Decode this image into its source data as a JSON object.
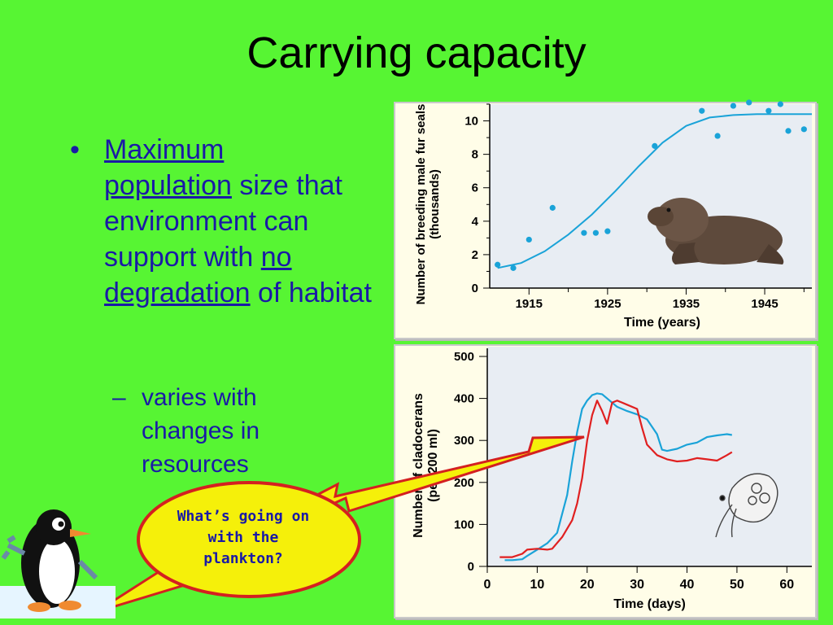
{
  "slide": {
    "title": "Carrying capacity",
    "bullet": {
      "marker": "•",
      "term1": "Maximum",
      "term2": "population",
      "text1": " size that environment can support with ",
      "term3": "no degradation",
      "text2": " of habitat"
    },
    "sub_bullet": {
      "marker": "–",
      "text": "varies with changes in resources"
    },
    "callout": "What’s going on with the plankton?"
  },
  "chart_data": [
    {
      "type": "scatter",
      "xlabel": "Time (years)",
      "ylabel": "Number of breeding male fur seals (thousands)",
      "xlim": [
        1910,
        1951
      ],
      "ylim": [
        0,
        11
      ],
      "xticks": [
        "1915",
        "1925",
        "1935",
        "1945"
      ],
      "yticks": [
        "0",
        "2",
        "4",
        "6",
        "8",
        "10"
      ],
      "points": [
        {
          "x": 1911,
          "y": 1.4
        },
        {
          "x": 1913,
          "y": 1.2
        },
        {
          "x": 1915,
          "y": 2.9
        },
        {
          "x": 1918,
          "y": 4.8
        },
        {
          "x": 1922,
          "y": 3.3
        },
        {
          "x": 1923.5,
          "y": 3.3
        },
        {
          "x": 1925,
          "y": 3.4
        },
        {
          "x": 1931,
          "y": 8.5
        },
        {
          "x": 1937,
          "y": 10.6
        },
        {
          "x": 1939,
          "y": 9.1
        },
        {
          "x": 1941,
          "y": 10.9
        },
        {
          "x": 1943,
          "y": 11.1
        },
        {
          "x": 1945.5,
          "y": 10.6
        },
        {
          "x": 1947,
          "y": 11.0
        },
        {
          "x": 1948,
          "y": 9.4
        },
        {
          "x": 1950,
          "y": 9.5
        }
      ],
      "fit": [
        [
          1911,
          1.2
        ],
        [
          1914,
          1.5
        ],
        [
          1917,
          2.2
        ],
        [
          1920,
          3.2
        ],
        [
          1923,
          4.4
        ],
        [
          1926,
          5.8
        ],
        [
          1929,
          7.3
        ],
        [
          1932,
          8.7
        ],
        [
          1935,
          9.7
        ],
        [
          1938,
          10.2
        ],
        [
          1941,
          10.35
        ],
        [
          1944,
          10.4
        ],
        [
          1947,
          10.4
        ],
        [
          1951,
          10.4
        ]
      ],
      "series_color": "#1aa3d8"
    },
    {
      "type": "line",
      "xlabel": "Time (days)",
      "ylabel": "Number of cladocerans (per 200 ml)",
      "xlim": [
        0,
        65
      ],
      "ylim": [
        0,
        500
      ],
      "xticks": [
        "0",
        "10",
        "20",
        "30",
        "40",
        "50",
        "60"
      ],
      "yticks": [
        "0",
        "100",
        "200",
        "300",
        "400",
        "500"
      ],
      "series": [
        {
          "color": "#1aa3d8",
          "points": [
            [
              3.5,
              15
            ],
            [
              5,
              15
            ],
            [
              7,
              17
            ],
            [
              8,
              25
            ],
            [
              10,
              40
            ],
            [
              12,
              55
            ],
            [
              14,
              80
            ],
            [
              16,
              170
            ],
            [
              17,
              250
            ],
            [
              18,
              320
            ],
            [
              19,
              375
            ],
            [
              20,
              395
            ],
            [
              21,
              408
            ],
            [
              22,
              412
            ],
            [
              23,
              410
            ],
            [
              24,
              400
            ],
            [
              25,
              390
            ],
            [
              26,
              380
            ],
            [
              28,
              370
            ],
            [
              30,
              362
            ],
            [
              32,
              350
            ],
            [
              34,
              315
            ],
            [
              35,
              278
            ],
            [
              36,
              275
            ],
            [
              38,
              280
            ],
            [
              40,
              290
            ],
            [
              42,
              295
            ],
            [
              44,
              308
            ],
            [
              46,
              312
            ],
            [
              48,
              315
            ],
            [
              49,
              313
            ]
          ]
        },
        {
          "color": "#e02020",
          "points": [
            [
              2.5,
              22
            ],
            [
              5,
              22
            ],
            [
              7,
              30
            ],
            [
              8,
              40
            ],
            [
              10,
              42
            ],
            [
              12,
              40
            ],
            [
              13,
              42
            ],
            [
              15,
              70
            ],
            [
              17,
              110
            ],
            [
              18,
              150
            ],
            [
              19,
              210
            ],
            [
              20,
              300
            ],
            [
              21,
              360
            ],
            [
              22,
              395
            ],
            [
              23,
              370
            ],
            [
              24,
              340
            ],
            [
              25,
              390
            ],
            [
              26,
              395
            ],
            [
              28,
              385
            ],
            [
              30,
              375
            ],
            [
              31,
              330
            ],
            [
              32,
              290
            ],
            [
              34,
              265
            ],
            [
              36,
              255
            ],
            [
              38,
              250
            ],
            [
              40,
              252
            ],
            [
              42,
              258
            ],
            [
              44,
              255
            ],
            [
              46,
              252
            ],
            [
              48,
              265
            ],
            [
              49,
              272
            ]
          ]
        }
      ]
    }
  ]
}
